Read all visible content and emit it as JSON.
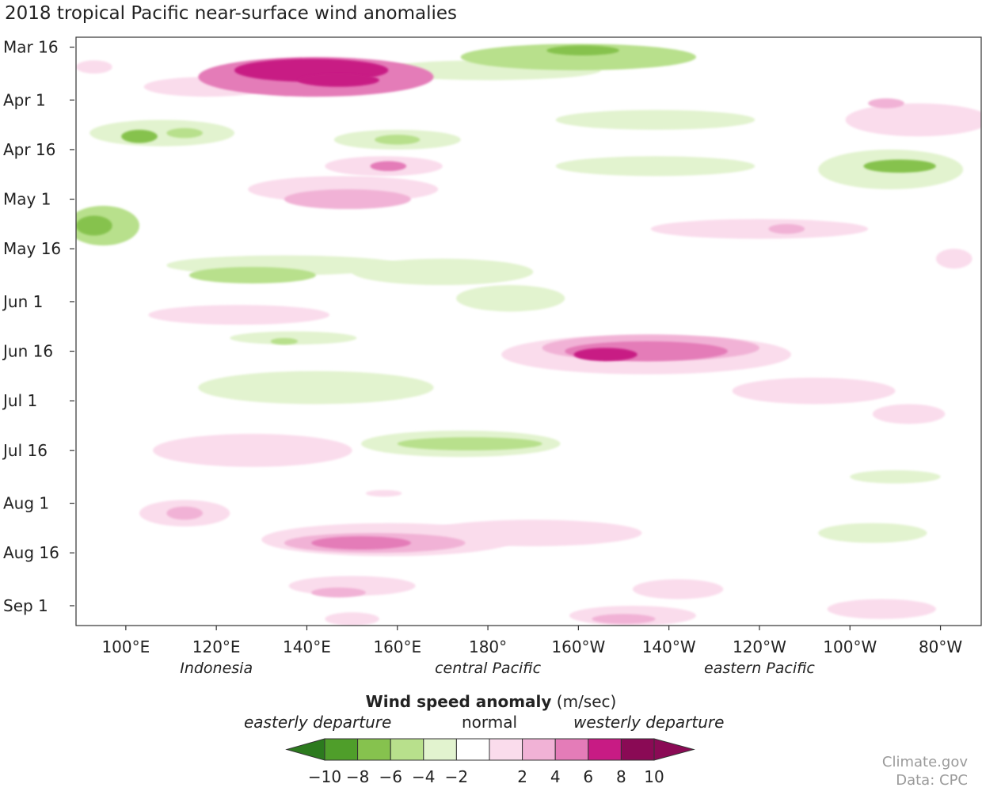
{
  "title": "2018 tropical Pacific near-surface wind anomalies",
  "chart_data": {
    "type": "heatmap",
    "title": "2018 tropical Pacific near-surface wind anomalies",
    "x_axis": {
      "ticks": [
        "100°E",
        "120°E",
        "140°E",
        "160°E",
        "180°",
        "160°W",
        "140°W",
        "120°W",
        "100°W",
        "80°W"
      ],
      "tick_lon": [
        100,
        120,
        140,
        160,
        180,
        200,
        220,
        240,
        260,
        280
      ],
      "range_lon": [
        89,
        289
      ],
      "region_labels": [
        {
          "text": "Indonesia",
          "lon": 120
        },
        {
          "text": "central Pacific",
          "lon": 180
        },
        {
          "text": "eastern Pacific",
          "lon": 240
        }
      ]
    },
    "y_axis": {
      "ticks": [
        "Mar 16",
        "Apr 1",
        "Apr 16",
        "May 1",
        "May 16",
        "Jun 1",
        "Jun 16",
        "Jul 1",
        "Jul 16",
        "Aug 1",
        "Aug 16",
        "Sep 1"
      ],
      "tick_day": [
        75,
        91,
        106,
        121,
        136,
        152,
        167,
        182,
        197,
        213,
        228,
        244
      ],
      "range_day": [
        72,
        250
      ]
    },
    "colorbar": {
      "title": "Wind speed anomaly",
      "units": "(m/sec)",
      "labels": [
        "-10",
        "-8",
        "-6",
        "-4",
        "-2",
        "2",
        "4",
        "6",
        "8",
        "10"
      ],
      "levels": [
        -10,
        -8,
        -6,
        -4,
        -2,
        2,
        4,
        6,
        8,
        10
      ],
      "colors": [
        "#2c7a1e",
        "#4f9e2a",
        "#86c24e",
        "#b8e08c",
        "#e2f3cf",
        "#ffffff",
        "#fadcec",
        "#f1b2d6",
        "#e47cb8",
        "#c81b84",
        "#8a0a55"
      ],
      "left_label": "easterly departure",
      "mid_label": "normal",
      "right_label": "westerly departure"
    },
    "blobs": [
      {
        "lon": 142,
        "day": 84,
        "dlon": 26,
        "dday": 6,
        "v": 6
      },
      {
        "lon": 141,
        "day": 82,
        "dlon": 17,
        "dday": 3.5,
        "v": 8
      },
      {
        "lon": 147,
        "day": 85,
        "dlon": 9,
        "dday": 2,
        "v": 8.5
      },
      {
        "lon": 137,
        "day": 86,
        "dlon": 16,
        "dday": 3,
        "v": 4
      },
      {
        "lon": 118,
        "day": 87,
        "dlon": 14,
        "dday": 3,
        "v": 2.5
      },
      {
        "lon": 93,
        "day": 81,
        "dlon": 4,
        "dday": 2,
        "v": 3
      },
      {
        "lon": 200,
        "day": 78,
        "dlon": 26,
        "dday": 4,
        "v": -4
      },
      {
        "lon": 201,
        "day": 76,
        "dlon": 8,
        "dday": 1.5,
        "v": -7
      },
      {
        "lon": 180,
        "day": 82,
        "dlon": 25,
        "dday": 3,
        "v": -2.5
      },
      {
        "lon": 217,
        "day": 97,
        "dlon": 22,
        "dday": 3,
        "v": -2.5
      },
      {
        "lon": 275,
        "day": 97,
        "dlon": 16,
        "dday": 5,
        "v": 2.5
      },
      {
        "lon": 268,
        "day": 92,
        "dlon": 4,
        "dday": 1.5,
        "v": 4
      },
      {
        "lon": 108,
        "day": 101,
        "dlon": 16,
        "dday": 4,
        "v": -3
      },
      {
        "lon": 103,
        "day": 102,
        "dlon": 4,
        "dday": 2,
        "v": -6
      },
      {
        "lon": 113,
        "day": 101,
        "dlon": 4,
        "dday": 1.5,
        "v": -5
      },
      {
        "lon": 160,
        "day": 103,
        "dlon": 14,
        "dday": 3,
        "v": -3
      },
      {
        "lon": 160,
        "day": 103,
        "dlon": 5,
        "dday": 1.5,
        "v": -5
      },
      {
        "lon": 157,
        "day": 111,
        "dlon": 13,
        "dday": 3,
        "v": 3
      },
      {
        "lon": 158,
        "day": 111,
        "dlon": 4,
        "dday": 1.5,
        "v": 6
      },
      {
        "lon": 148,
        "day": 118,
        "dlon": 21,
        "dday": 4,
        "v": 3
      },
      {
        "lon": 149,
        "day": 121,
        "dlon": 14,
        "dday": 3,
        "v": 4
      },
      {
        "lon": 217,
        "day": 111,
        "dlon": 22,
        "dday": 3,
        "v": -2.5
      },
      {
        "lon": 269,
        "day": 112,
        "dlon": 16,
        "dday": 6,
        "v": -3
      },
      {
        "lon": 271,
        "day": 111,
        "dlon": 8,
        "dday": 2,
        "v": -6
      },
      {
        "lon": 95,
        "day": 129,
        "dlon": 8,
        "dday": 6,
        "v": -4
      },
      {
        "lon": 93,
        "day": 129,
        "dlon": 4,
        "dday": 3,
        "v": -7
      },
      {
        "lon": 240,
        "day": 130,
        "dlon": 24,
        "dday": 3,
        "v": 2.5
      },
      {
        "lon": 246,
        "day": 130,
        "dlon": 4,
        "dday": 1.5,
        "v": 4
      },
      {
        "lon": 135,
        "day": 141,
        "dlon": 26,
        "dday": 3,
        "v": -3
      },
      {
        "lon": 128,
        "day": 144,
        "dlon": 14,
        "dday": 2.5,
        "v": -4.5
      },
      {
        "lon": 170,
        "day": 143,
        "dlon": 20,
        "dday": 4,
        "v": -2.5
      },
      {
        "lon": 185,
        "day": 151,
        "dlon": 12,
        "dday": 4,
        "v": -2.5
      },
      {
        "lon": 283,
        "day": 139,
        "dlon": 4,
        "dday": 3,
        "v": 2.5
      },
      {
        "lon": 125,
        "day": 156,
        "dlon": 20,
        "dday": 3,
        "v": 2.5
      },
      {
        "lon": 137,
        "day": 163,
        "dlon": 14,
        "dday": 2,
        "v": -3
      },
      {
        "lon": 135,
        "day": 164,
        "dlon": 3,
        "dday": 1,
        "v": -5
      },
      {
        "lon": 215,
        "day": 168,
        "dlon": 32,
        "dday": 6,
        "v": 2.5
      },
      {
        "lon": 216,
        "day": 166,
        "dlon": 24,
        "dday": 4,
        "v": 4
      },
      {
        "lon": 215,
        "day": 167,
        "dlon": 18,
        "dday": 3,
        "v": 6
      },
      {
        "lon": 206,
        "day": 168,
        "dlon": 7,
        "dday": 2,
        "v": 8
      },
      {
        "lon": 142,
        "day": 178,
        "dlon": 26,
        "dday": 5,
        "v": -2.5
      },
      {
        "lon": 174,
        "day": 195,
        "dlon": 22,
        "dday": 4,
        "v": -3
      },
      {
        "lon": 176,
        "day": 195,
        "dlon": 16,
        "dday": 2,
        "v": -5
      },
      {
        "lon": 128,
        "day": 197,
        "dlon": 22,
        "dday": 5,
        "v": 2.5
      },
      {
        "lon": 252,
        "day": 179,
        "dlon": 18,
        "dday": 4,
        "v": 2.5
      },
      {
        "lon": 273,
        "day": 186,
        "dlon": 8,
        "dday": 3,
        "v": 2.5
      },
      {
        "lon": 270,
        "day": 205,
        "dlon": 10,
        "dday": 2,
        "v": -2.5
      },
      {
        "lon": 113,
        "day": 216,
        "dlon": 10,
        "dday": 4,
        "v": 3
      },
      {
        "lon": 113,
        "day": 216,
        "dlon": 4,
        "dday": 2,
        "v": 4.5
      },
      {
        "lon": 157,
        "day": 210,
        "dlon": 4,
        "dday": 1,
        "v": 3.5
      },
      {
        "lon": 158,
        "day": 224,
        "dlon": 28,
        "dday": 5,
        "v": 3
      },
      {
        "lon": 155,
        "day": 225,
        "dlon": 20,
        "dday": 3,
        "v": 4.5
      },
      {
        "lon": 152,
        "day": 225,
        "dlon": 11,
        "dday": 2,
        "v": 6.5
      },
      {
        "lon": 190,
        "day": 222,
        "dlon": 24,
        "dday": 4,
        "v": 2.5
      },
      {
        "lon": 150,
        "day": 238,
        "dlon": 14,
        "dday": 3,
        "v": 2.5
      },
      {
        "lon": 147,
        "day": 240,
        "dlon": 6,
        "dday": 1.5,
        "v": 4
      },
      {
        "lon": 212,
        "day": 247,
        "dlon": 14,
        "dday": 3,
        "v": 2.5
      },
      {
        "lon": 210,
        "day": 248,
        "dlon": 7,
        "dday": 1.5,
        "v": 4
      },
      {
        "lon": 150,
        "day": 248,
        "dlon": 6,
        "dday": 2,
        "v": 3.5
      },
      {
        "lon": 265,
        "day": 222,
        "dlon": 12,
        "dday": 3,
        "v": -2.5
      },
      {
        "lon": 222,
        "day": 239,
        "dlon": 10,
        "dday": 3,
        "v": 2.5
      },
      {
        "lon": 267,
        "day": 245,
        "dlon": 12,
        "dday": 3,
        "v": 2.5
      }
    ]
  },
  "credits": [
    "Climate.gov",
    "Data: CPC"
  ]
}
